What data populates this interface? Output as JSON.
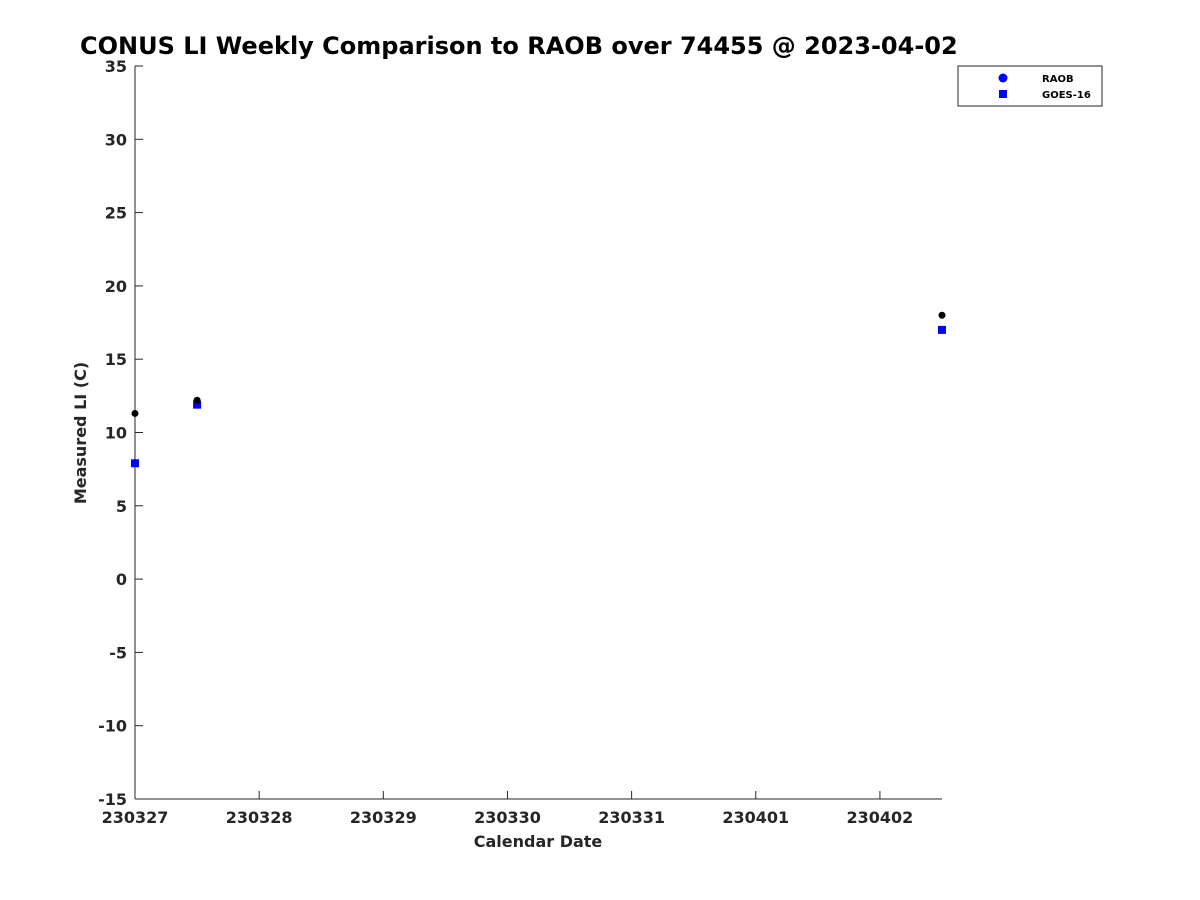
{
  "chart_data": {
    "type": "scatter",
    "title": "CONUS LI Weekly Comparison to RAOB over 74455 @ 2023-04-02",
    "xlabel": "Calendar Date",
    "ylabel": "Measured LI (C)",
    "xlim": [
      0,
      6.5
    ],
    "ylim": [
      -15,
      35
    ],
    "x_ticks": [
      0,
      1,
      2,
      3,
      4,
      5,
      6
    ],
    "x_tick_labels": [
      "230327",
      "230328",
      "230329",
      "230330",
      "230331",
      "230401",
      "230402"
    ],
    "y_ticks": [
      -15,
      -10,
      -5,
      0,
      5,
      10,
      15,
      20,
      25,
      30,
      35
    ],
    "y_tick_labels": [
      "-15",
      "-10",
      "-5",
      "0",
      "5",
      "10",
      "15",
      "20",
      "25",
      "30",
      "35"
    ],
    "legend_position": "top-right",
    "series": [
      {
        "name": "RAOB",
        "marker": "circle",
        "color": "#000000",
        "legend_color": "#0000ff",
        "x": [
          0,
          0.5,
          6.5
        ],
        "y": [
          11.3,
          12.2,
          18.0
        ]
      },
      {
        "name": "GOES-16",
        "marker": "square",
        "color": "#0000ff",
        "legend_color": "#0000ff",
        "x": [
          0,
          0.5,
          6.5
        ],
        "y": [
          7.9,
          11.9,
          17.0
        ]
      }
    ]
  }
}
